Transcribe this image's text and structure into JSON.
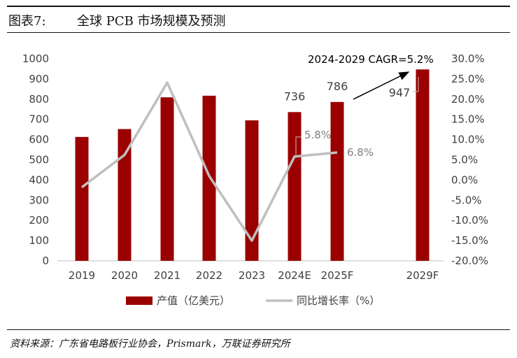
{
  "header": {
    "figure_no": "图表7:",
    "title": "全球 PCB 市场规模及预测"
  },
  "source_note": "资料来源：广东省电路板行业协会，Prismark，万联证券研究所",
  "chart_data": {
    "type": "bar",
    "categories": [
      "2019",
      "2020",
      "2021",
      "2022",
      "2023",
      "2024E",
      "2025F",
      "2029F"
    ],
    "y_left": {
      "lim": [
        0,
        1000
      ],
      "ticks": [
        "0",
        "100",
        "200",
        "300",
        "400",
        "500",
        "600",
        "700",
        "800",
        "900",
        "1000"
      ]
    },
    "y_right": {
      "lim": [
        -20,
        30
      ],
      "ticks": [
        "-20.0%",
        "-15.0%",
        "-10.0%",
        "-5.0%",
        "0.0%",
        "5.0%",
        "10.0%",
        "15.0%",
        "20.0%",
        "25.0%",
        "30.0%"
      ]
    },
    "series": [
      {
        "name": "产值（亿美元）",
        "type": "bar",
        "axis": "left",
        "color": "#9b0000",
        "values": [
          613,
          652,
          809,
          817,
          695,
          736,
          786,
          947
        ]
      },
      {
        "name": "同比增长率（%）",
        "type": "line",
        "axis": "right",
        "color": "#bfbfbf",
        "values": [
          -1.8,
          6.2,
          24.1,
          1.0,
          -15.0,
          5.8,
          6.8,
          null
        ]
      }
    ],
    "data_labels": [
      {
        "text": "736",
        "series": 0,
        "category": "2024E"
      },
      {
        "text": "786",
        "series": 0,
        "category": "2025F"
      },
      {
        "text": "947",
        "series": 0,
        "category": "2029F"
      },
      {
        "text": "5.8%",
        "series": 1,
        "category": "2024E"
      },
      {
        "text": "6.8%",
        "series": 1,
        "category": "2025F"
      }
    ],
    "annotation": "2024-2029 CAGR=5.2%",
    "legend": {
      "position": "bottom"
    },
    "grid": false
  }
}
